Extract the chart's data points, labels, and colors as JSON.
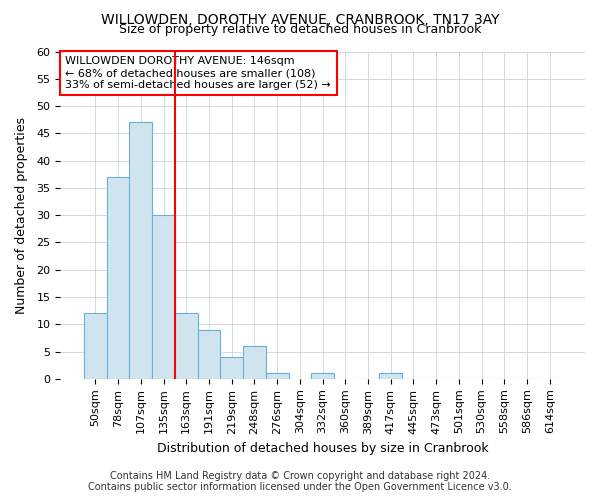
{
  "title": "WILLOWDEN, DOROTHY AVENUE, CRANBROOK, TN17 3AY",
  "subtitle": "Size of property relative to detached houses in Cranbrook",
  "xlabel": "Distribution of detached houses by size in Cranbrook",
  "ylabel": "Number of detached properties",
  "categories": [
    "50sqm",
    "78sqm",
    "107sqm",
    "135sqm",
    "163sqm",
    "191sqm",
    "219sqm",
    "248sqm",
    "276sqm",
    "304sqm",
    "332sqm",
    "360sqm",
    "389sqm",
    "417sqm",
    "445sqm",
    "473sqm",
    "501sqm",
    "530sqm",
    "558sqm",
    "586sqm",
    "614sqm"
  ],
  "values": [
    12,
    37,
    47,
    30,
    12,
    9,
    4,
    6,
    1,
    0,
    1,
    0,
    0,
    1,
    0,
    0,
    0,
    0,
    0,
    0,
    0
  ],
  "bar_color": "#d0e4f0",
  "bar_edge_color": "#6aafd6",
  "red_line_x": 3.5,
  "annotation_line1": "WILLOWDEN DOROTHY AVENUE: 146sqm",
  "annotation_line2": "← 68% of detached houses are smaller (108)",
  "annotation_line3": "33% of semi-detached houses are larger (52) →",
  "annotation_box_color": "white",
  "annotation_box_edge_color": "red",
  "ylim": [
    0,
    60
  ],
  "yticks": [
    0,
    5,
    10,
    15,
    20,
    25,
    30,
    35,
    40,
    45,
    50,
    55,
    60
  ],
  "footer_line1": "Contains HM Land Registry data © Crown copyright and database right 2024.",
  "footer_line2": "Contains public sector information licensed under the Open Government Licence v3.0.",
  "background_color": "#ffffff",
  "grid_color": "#c8d4e0",
  "title_fontsize": 10,
  "subtitle_fontsize": 9,
  "axis_label_fontsize": 9,
  "tick_fontsize": 8,
  "annotation_fontsize": 8,
  "footer_fontsize": 7
}
